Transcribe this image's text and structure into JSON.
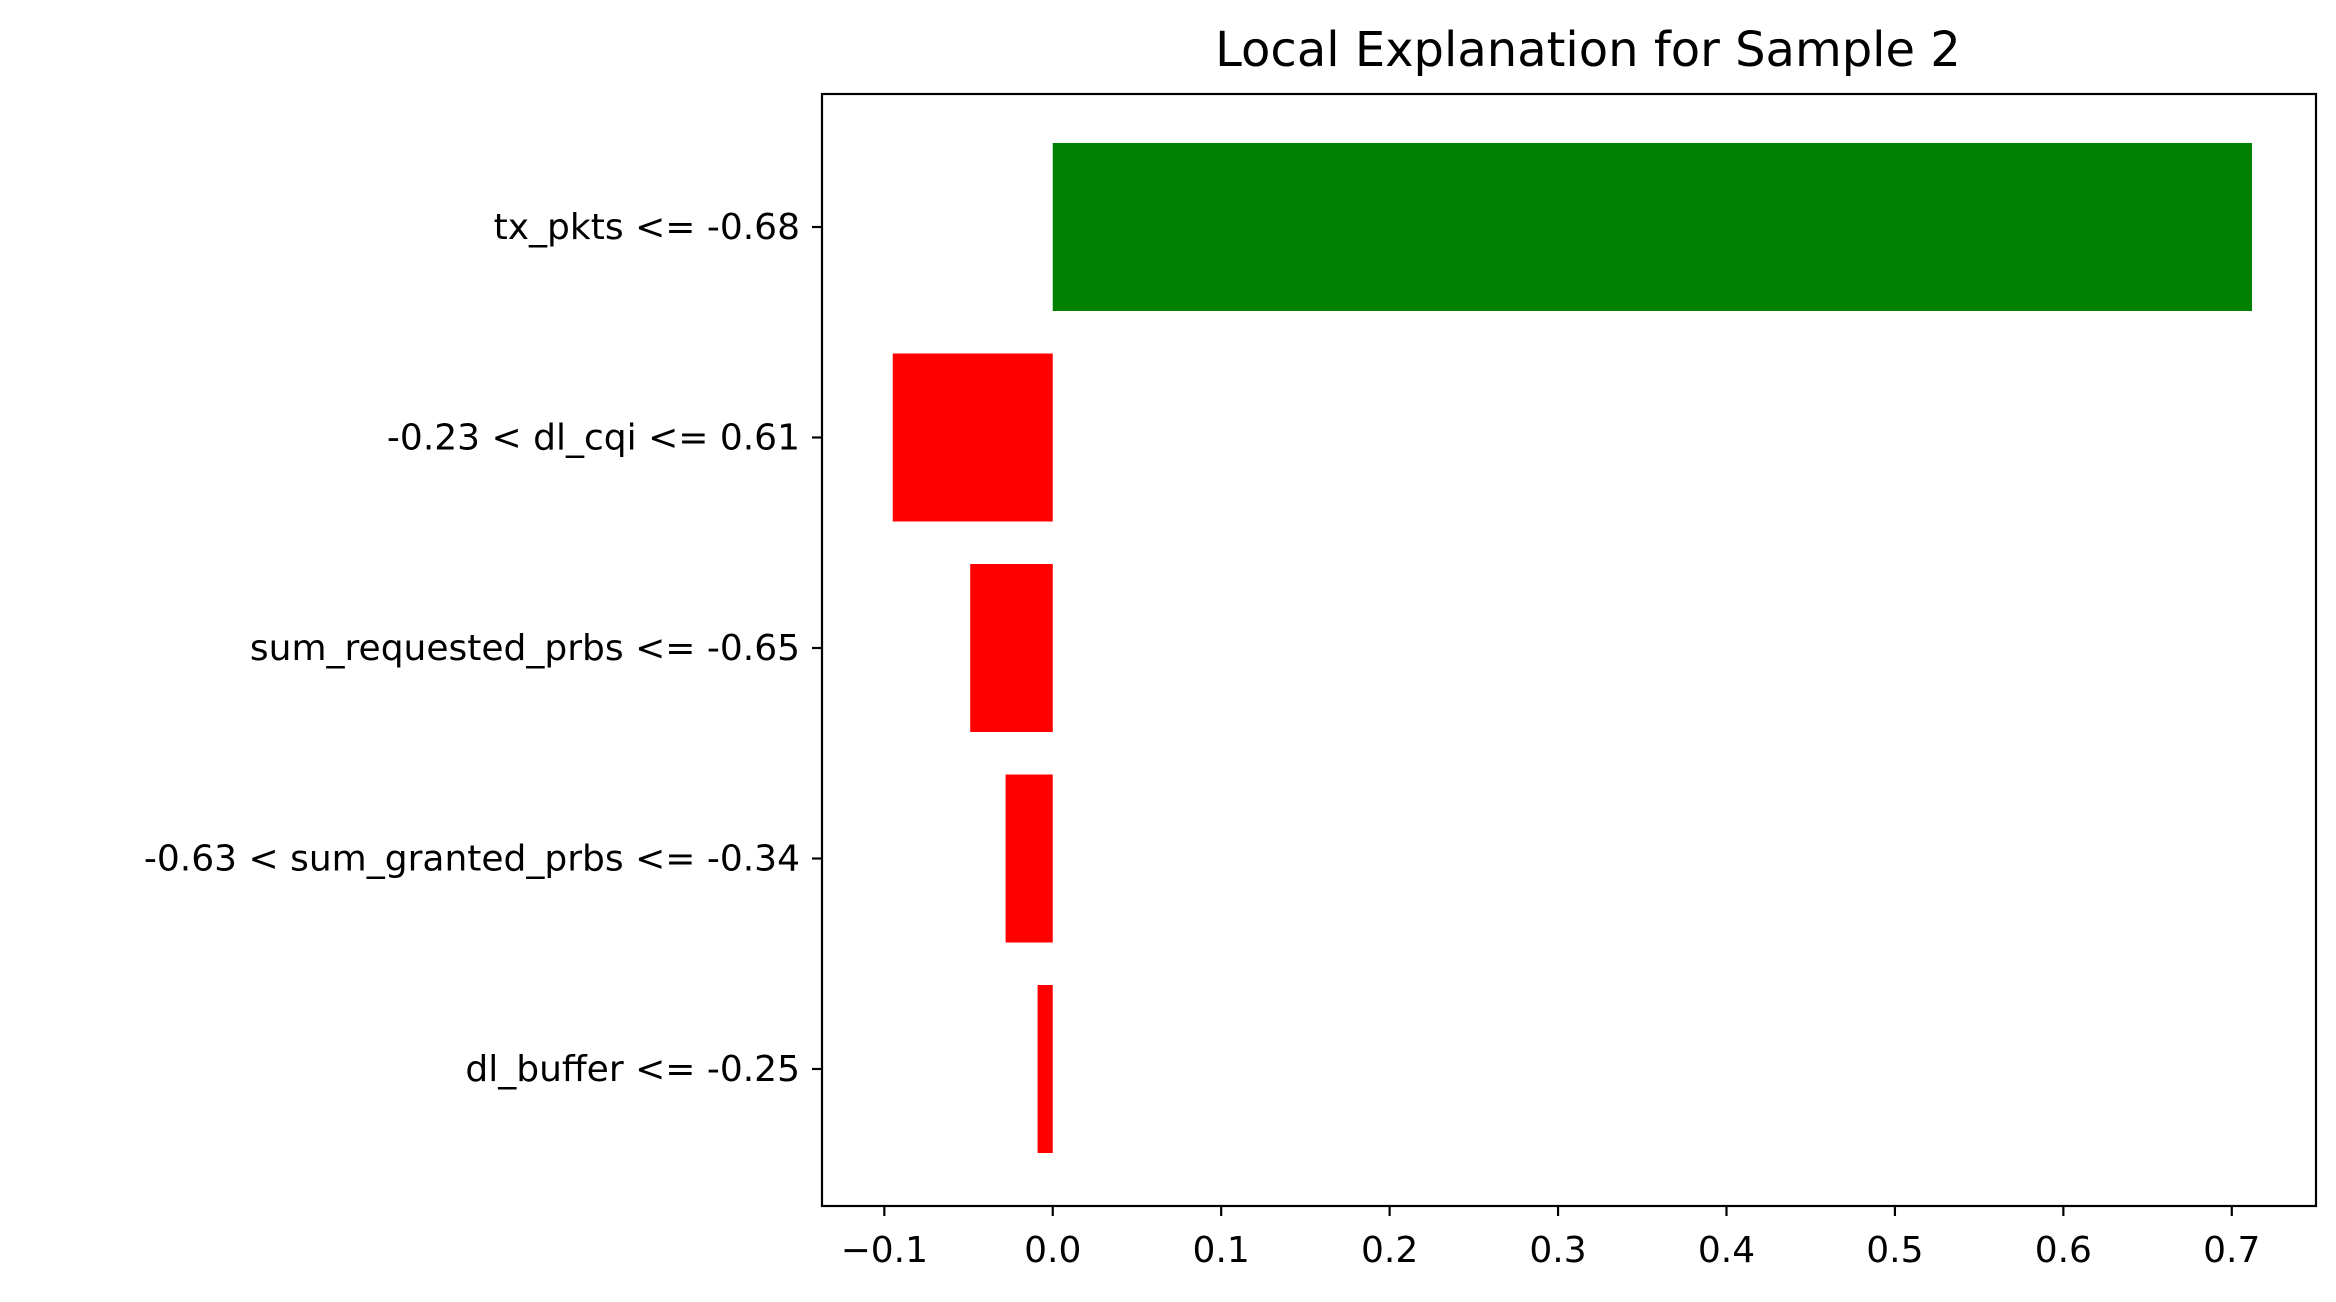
{
  "chart_data": {
    "type": "bar",
    "orientation": "horizontal",
    "title": "Local Explanation for Sample 2",
    "xlabel": "",
    "ylabel": "",
    "categories": [
      "tx_pkts <= -0.68",
      "-0.23 < dl_cqi <= 0.61",
      "sum_requested_prbs <= -0.65",
      "-0.63 < sum_granted_prbs <= -0.34",
      "dl_buffer <= -0.25"
    ],
    "values": [
      0.712,
      -0.095,
      -0.049,
      -0.028,
      -0.009
    ],
    "xlim": [
      -0.137,
      0.75
    ],
    "xticks": [
      -0.1,
      0.0,
      0.1,
      0.2,
      0.3,
      0.4,
      0.5,
      0.6,
      0.7
    ],
    "xtick_labels": [
      "−0.1",
      "0.0",
      "0.1",
      "0.2",
      "0.3",
      "0.4",
      "0.5",
      "0.6",
      "0.7"
    ],
    "colors": {
      "positive": "#008000",
      "negative": "#ff0000"
    },
    "grid": false,
    "legend": "none"
  }
}
